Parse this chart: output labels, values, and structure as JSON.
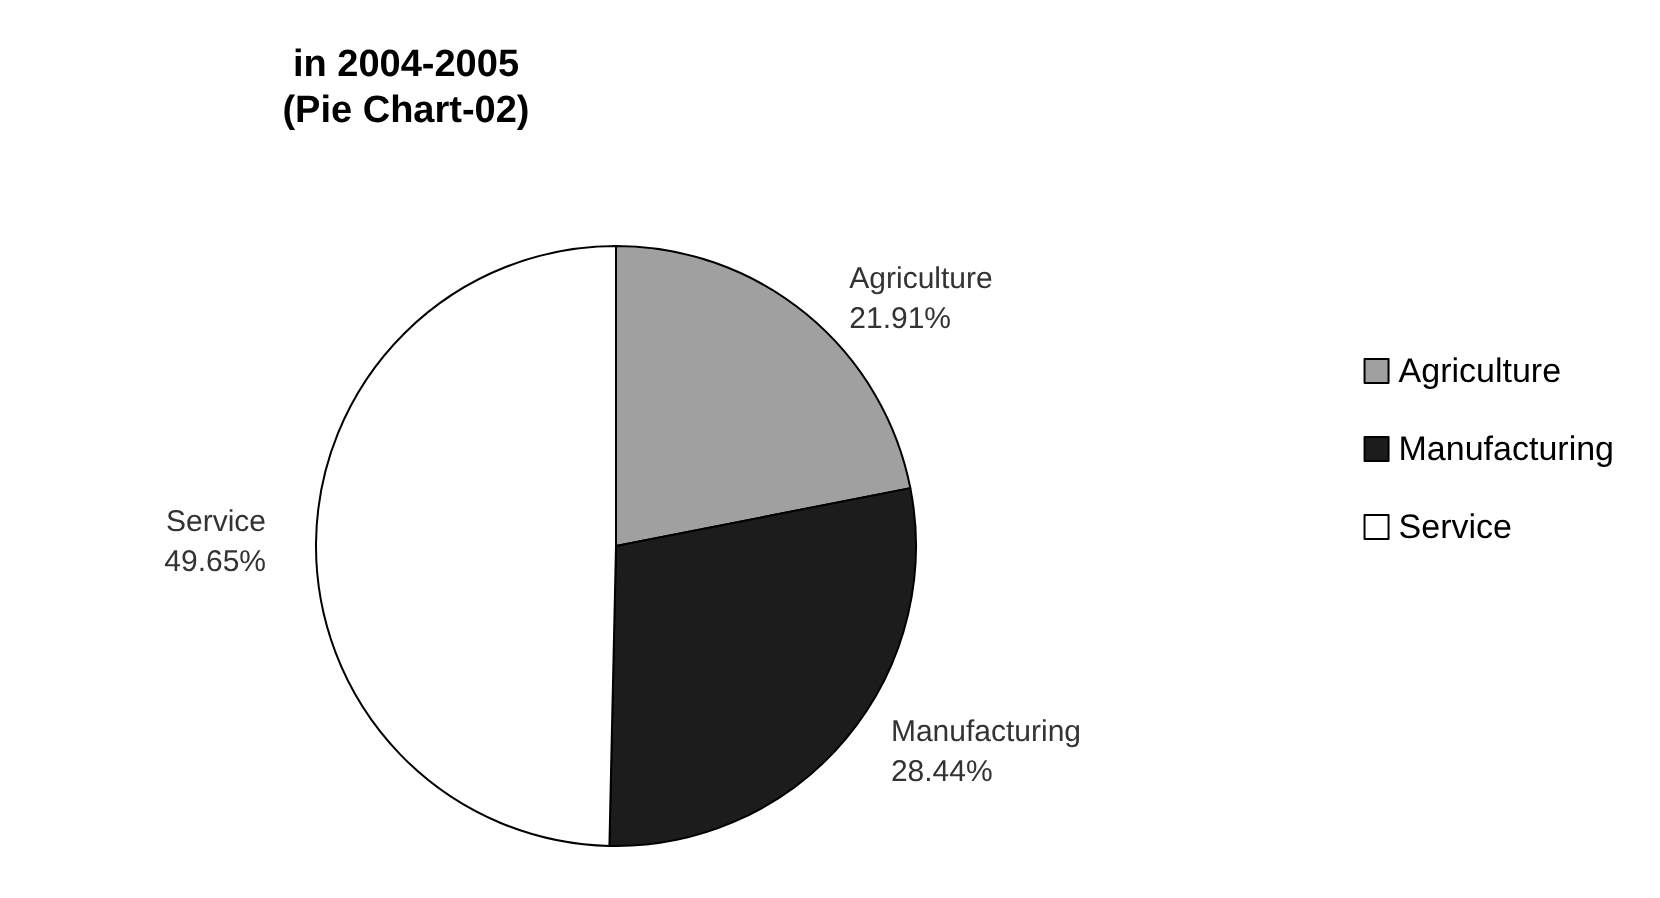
{
  "chart_data": {
    "type": "pie",
    "title": "in 2004-2005",
    "subtitle": "(Pie Chart-02)",
    "categories": [
      "Agriculture",
      "Manufacturing",
      "Service"
    ],
    "values": [
      21.91,
      28.44,
      49.65
    ],
    "colors": [
      "#a0a0a0",
      "#1c1c1c",
      "#ffffff"
    ],
    "value_labels": [
      "21.91%",
      "28.44%",
      "49.65%"
    ],
    "legend": "right"
  }
}
